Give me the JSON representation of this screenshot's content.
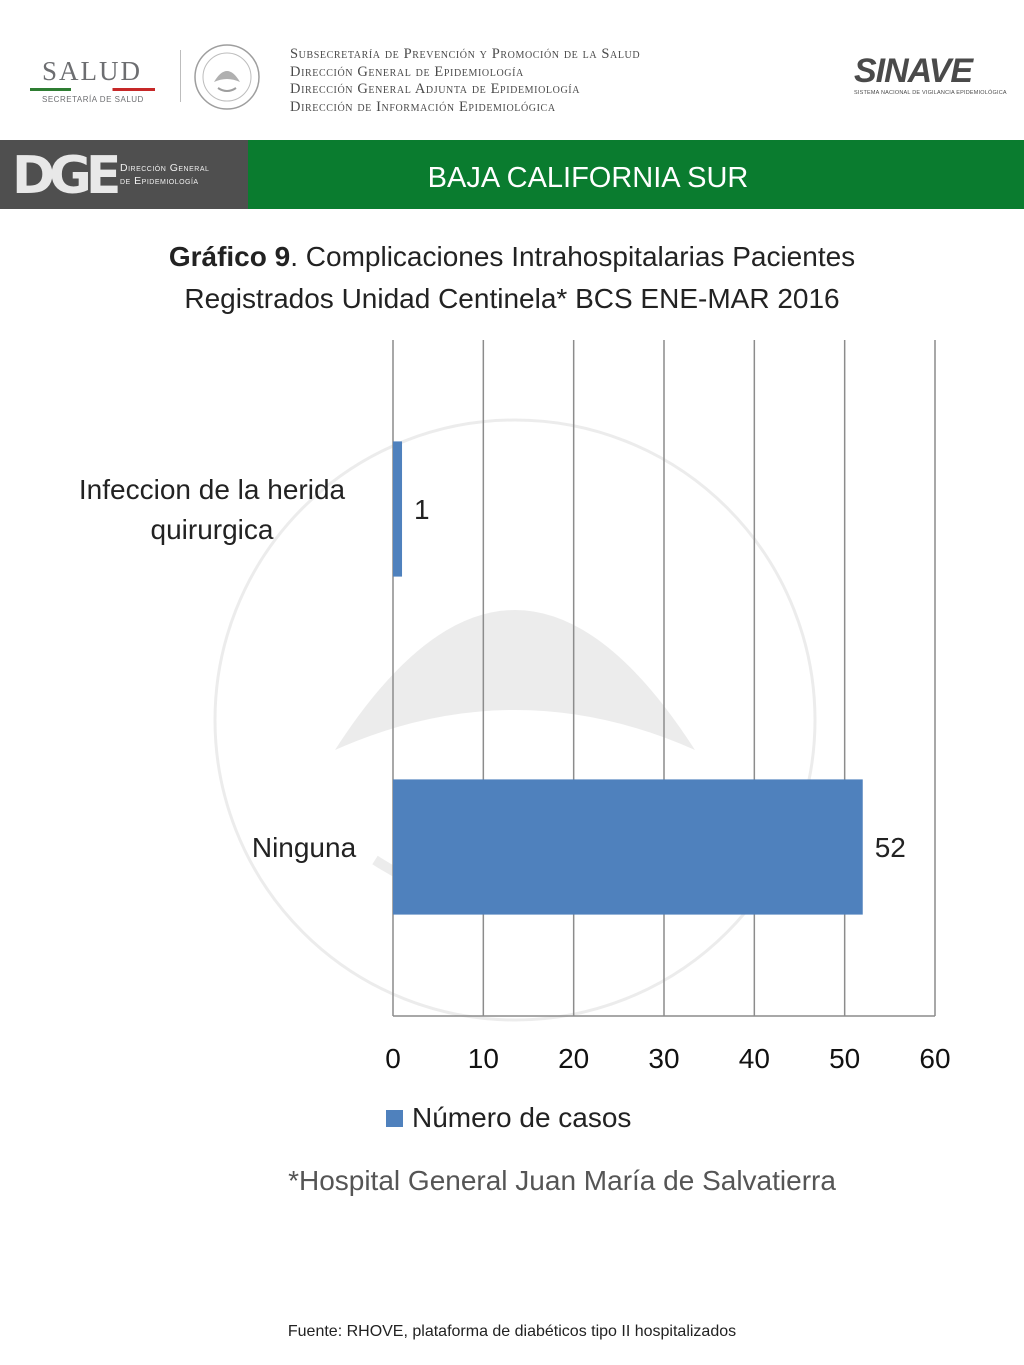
{
  "header": {
    "salud_logo": "SALUD",
    "salud_sub": "SECRETARÍA DE SALUD",
    "lines": [
      "Subsecretaría de Prevención y Promoción de la Salud",
      "Dirección General de Epidemiología",
      "Dirección General Adjunta de Epidemiología",
      "Dirección de Información Epidemiológica"
    ],
    "sinave_logo": "SINAVE",
    "sinave_sub": "SISTEMA NACIONAL DE VIGILANCIA EPIDEMIOLÓGICA"
  },
  "banner": {
    "dge_mark": "DGE",
    "dge_text_line1": "Dirección General",
    "dge_text_line2": "de Epidemiología",
    "state": "BAJA CALIFORNIA SUR",
    "green": "#0a7c2f",
    "gray": "#4f4f4f"
  },
  "chart_data": {
    "type": "bar",
    "orientation": "horizontal",
    "title_bold": "Gráfico 9",
    "title_rest": ". Complicaciones Intrahospitalarias Pacientes",
    "title_line2": "Registrados Unidad Centinela* BCS  ENE-MAR 2016",
    "categories": [
      [
        "Infeccion de la herida",
        "quirurgica"
      ],
      [
        "Ninguna"
      ]
    ],
    "series": [
      {
        "name": "Número de casos",
        "values": [
          1,
          52
        ],
        "color": "#4f81bd"
      }
    ],
    "xlim": [
      0,
      60
    ],
    "xticks": [
      "0",
      "10",
      "20",
      "30",
      "40",
      "50",
      "60"
    ],
    "grid": true,
    "legend_position": "bottom"
  },
  "footnote": "*Hospital General Juan María de Salvatierra",
  "source": "Fuente: RHOVE, plataforma de diabéticos tipo II hospitalizados"
}
